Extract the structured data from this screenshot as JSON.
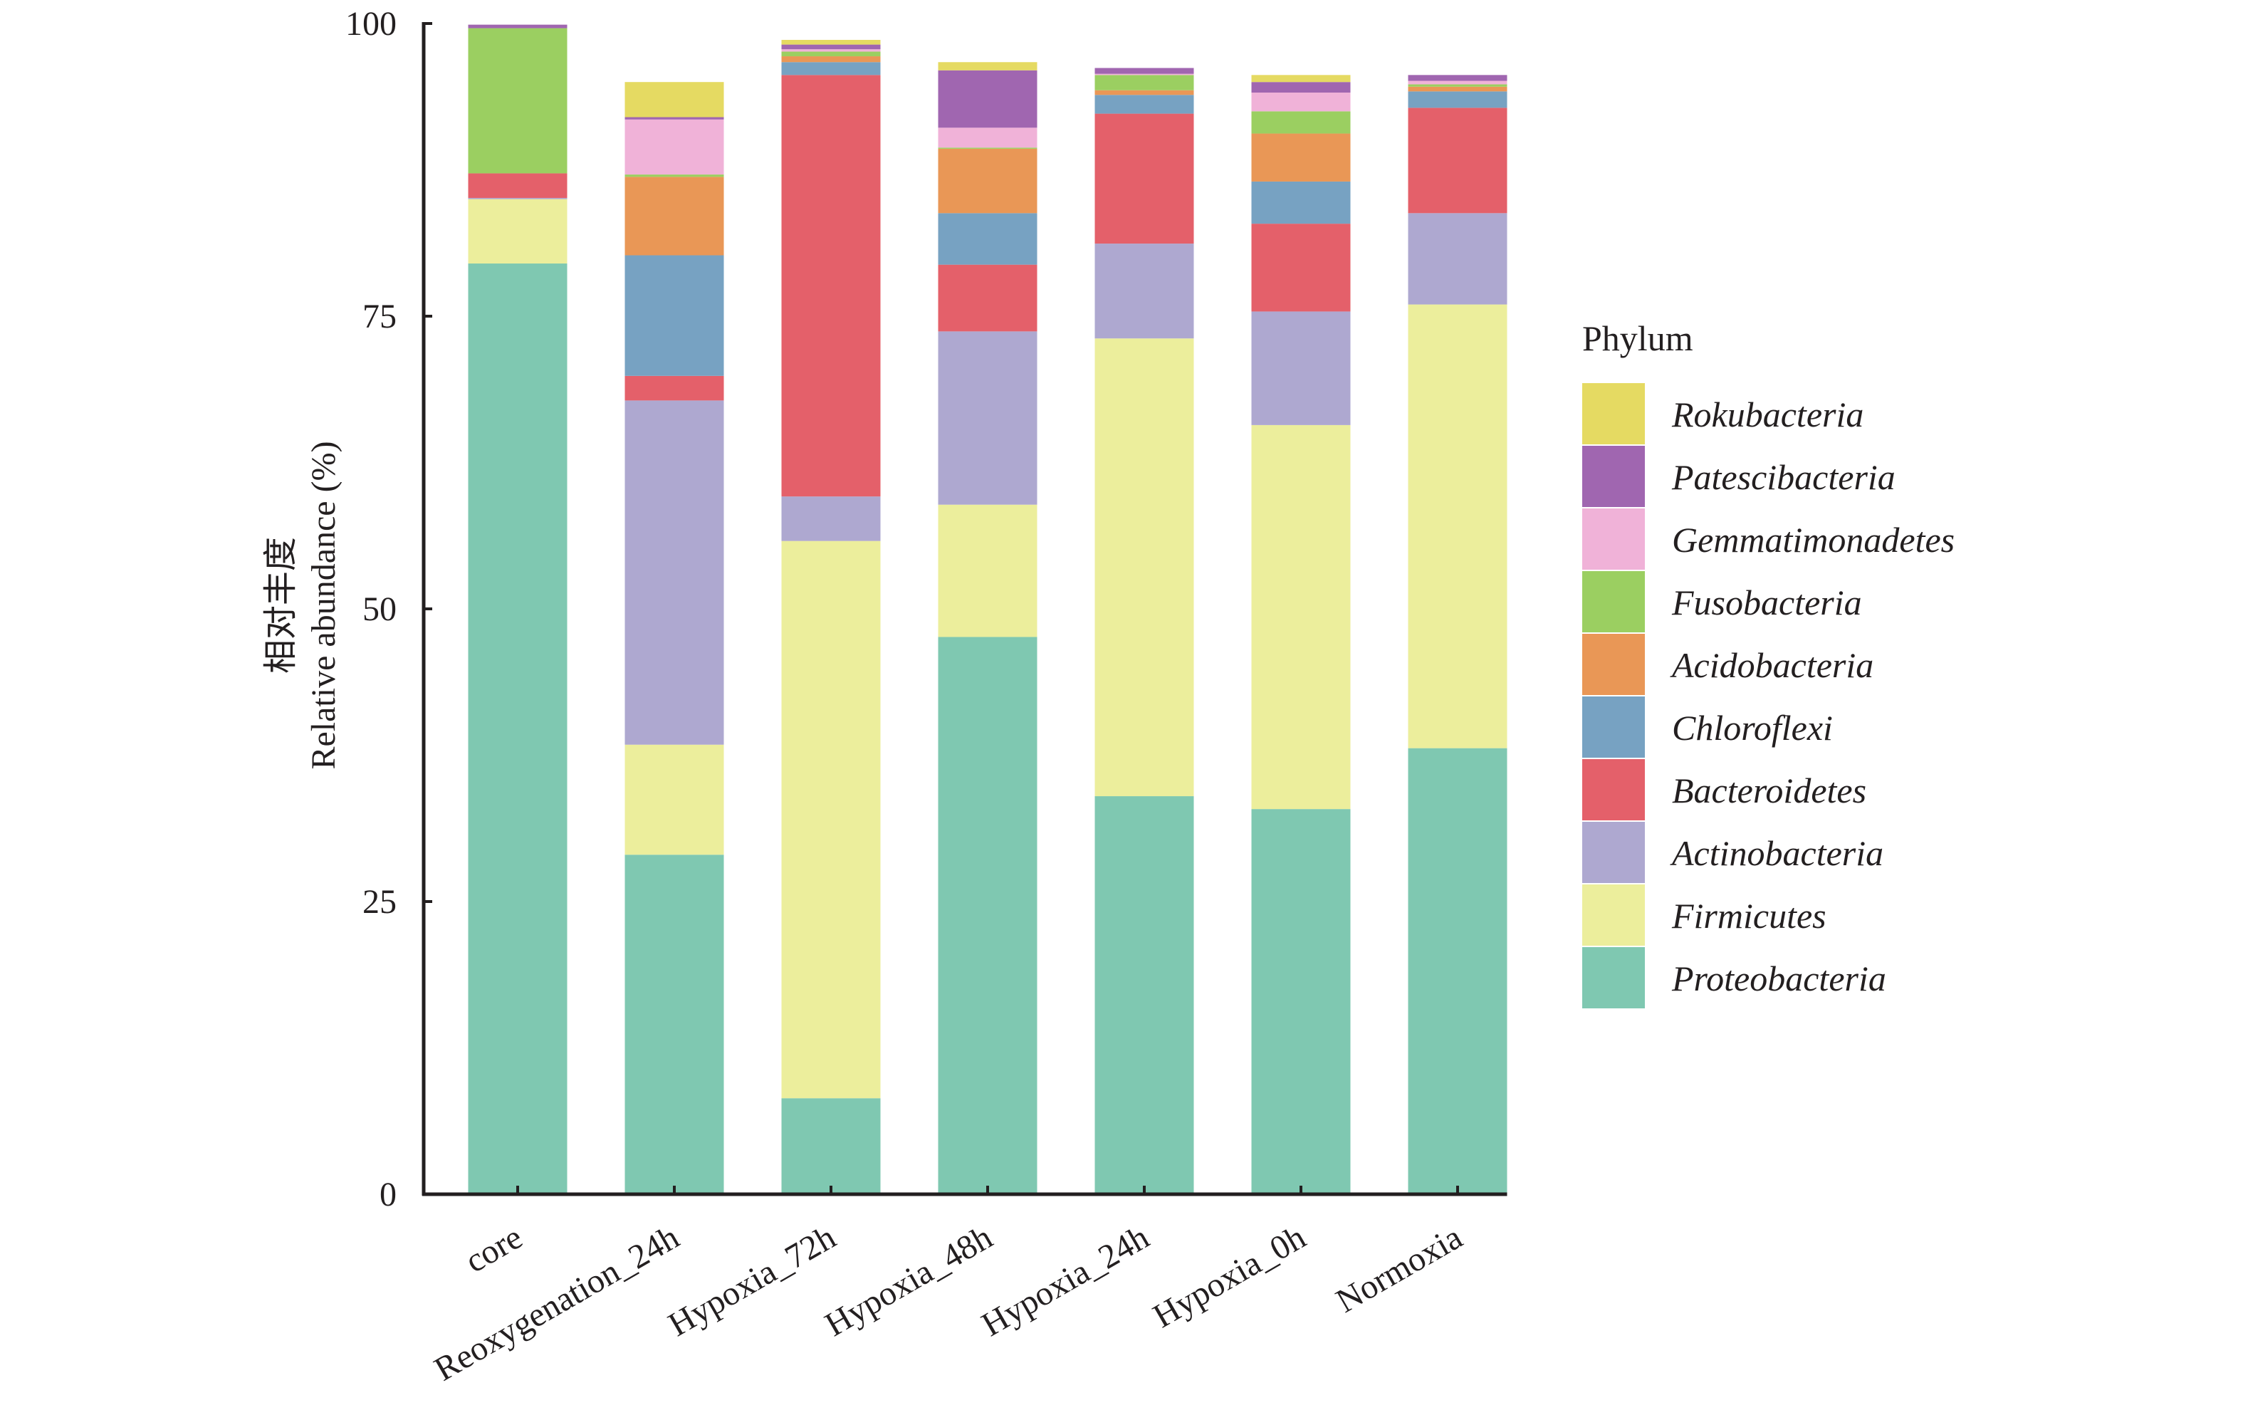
{
  "chart_data": {
    "type": "bar",
    "stacked": true,
    "title": "",
    "xlabel": "",
    "ylabel_lines": [
      "相对丰度",
      "Relative abundance (%)"
    ],
    "ylim": [
      0,
      100
    ],
    "yticks": [
      0,
      25,
      50,
      75,
      100
    ],
    "grid": false,
    "legend_title": "Phylum",
    "legend_position": "right",
    "categories": [
      "core",
      "Reoxygenation_24h",
      "Hypoxia_72h",
      "Hypoxia_48h",
      "Hypoxia_24h",
      "Hypoxia_0h",
      "Normoxia"
    ],
    "series": [
      {
        "name": "Proteobacteria",
        "color": "#7fc8b1",
        "values": [
          79.5,
          29.0,
          8.2,
          47.6,
          34.0,
          32.9,
          38.1
        ]
      },
      {
        "name": "Firmicutes",
        "color": "#ecee9c",
        "values": [
          5.5,
          9.4,
          47.6,
          11.3,
          39.1,
          32.8,
          37.9
        ]
      },
      {
        "name": "Actinobacteria",
        "color": "#aea8d0",
        "values": [
          0.1,
          29.4,
          3.8,
          14.8,
          8.1,
          9.7,
          7.8
        ]
      },
      {
        "name": "Bacteroidetes",
        "color": "#e4606a",
        "values": [
          2.1,
          2.1,
          36.0,
          5.7,
          11.1,
          7.5,
          9.0
        ]
      },
      {
        "name": "Chloroflexi",
        "color": "#77a2c2",
        "values": [
          0.0,
          10.3,
          1.1,
          4.4,
          1.6,
          3.6,
          1.4
        ]
      },
      {
        "name": "Acidobacteria",
        "color": "#e99756",
        "values": [
          0.0,
          6.7,
          0.5,
          5.5,
          0.4,
          4.1,
          0.4
        ]
      },
      {
        "name": "Fusobacteria",
        "color": "#9bcf61",
        "values": [
          12.4,
          0.2,
          0.4,
          0.1,
          1.3,
          1.9,
          0.2
        ]
      },
      {
        "name": "Gemmatimonadetes",
        "color": "#f0b2d8",
        "values": [
          0.0,
          4.7,
          0.2,
          1.7,
          0.1,
          1.6,
          0.3
        ]
      },
      {
        "name": "Patescibacteria",
        "color": "#a066b0",
        "values": [
          0.3,
          0.2,
          0.4,
          4.9,
          0.5,
          0.9,
          0.5
        ]
      },
      {
        "name": "Rokubacteria",
        "color": "#e5da62",
        "values": [
          0.0,
          3.0,
          0.4,
          0.7,
          0.0,
          0.6,
          0.0
        ]
      }
    ]
  }
}
